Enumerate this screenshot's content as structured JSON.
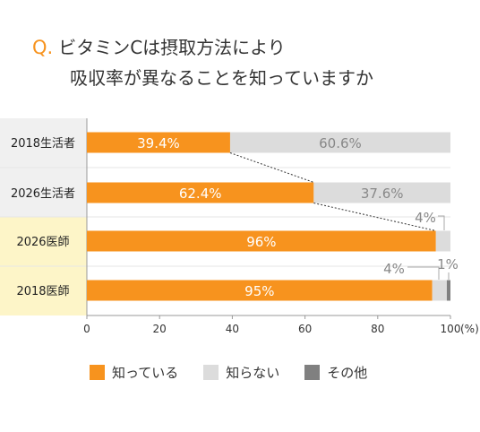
{
  "title": {
    "prefix": "Q.",
    "line1": "ビタミンCは摂取方法により",
    "line2": "吸収率が異なることを知っていますか"
  },
  "colors": {
    "know": "#f7931e",
    "dont_know": "#dcdcdc",
    "other": "#808080",
    "doctor_band": "#fdf5c8",
    "consumer_band": "#f0f0f0"
  },
  "chart_data": {
    "type": "bar",
    "orientation": "horizontal",
    "stacked": true,
    "categories": [
      "2018生活者",
      "2026生活者",
      "2026医師",
      "2018医師"
    ],
    "series": [
      {
        "name": "知っている",
        "values": [
          39.4,
          62.4,
          96,
          95
        ],
        "labels": [
          "39.4%",
          "62.4%",
          "96%",
          "95%"
        ]
      },
      {
        "name": "知らない",
        "values": [
          60.6,
          37.6,
          4,
          4
        ],
        "labels": [
          "60.6%",
          "37.6%",
          "4%",
          "4%"
        ]
      },
      {
        "name": "その他",
        "values": [
          0,
          0,
          0,
          1
        ],
        "labels": [
          "",
          "",
          "",
          "1%"
        ]
      }
    ],
    "xlim": [
      0,
      100
    ],
    "xticks": [
      "0",
      "20",
      "40",
      "60",
      "80",
      "100"
    ],
    "x_unit": "(%)",
    "legend": "bottom"
  }
}
